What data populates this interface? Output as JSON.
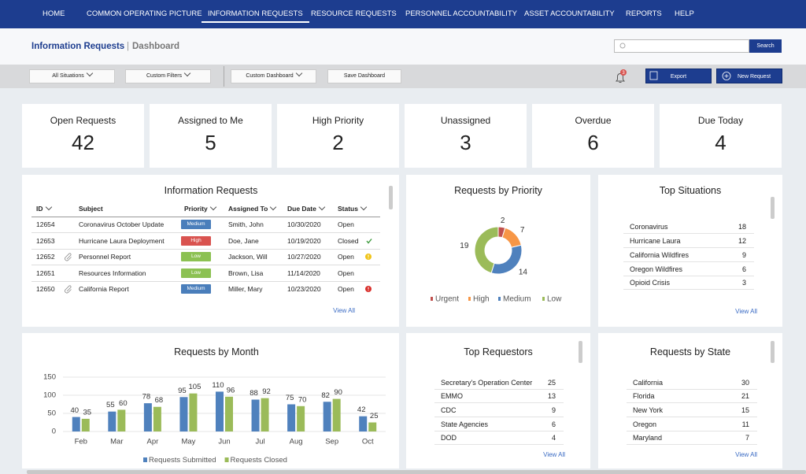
{
  "nav": {
    "items": [
      "HOME",
      "COMMON OPERATING PICTURE",
      "INFORMATION REQUESTS",
      "RESOURCE REQUESTS",
      "PERSONNEL ACCOUNTABILITY",
      "ASSET ACCOUNTABILITY",
      "REPORTS",
      "HELP"
    ],
    "active": 2
  },
  "header": {
    "title": "Information Requests",
    "separator": "|",
    "subtitle": "Dashboard",
    "search_button": "Search"
  },
  "toolbar": {
    "filters": [
      "All Situations",
      "Custom Filters"
    ],
    "custom_dashboard": "Custom Dashboard",
    "save_dashboard": "Save Dashboard",
    "notifications": 3,
    "export": "Export",
    "new_request": "New Request"
  },
  "kpis": [
    {
      "label": "Open Requests",
      "value": 42
    },
    {
      "label": "Assigned to Me",
      "value": 5
    },
    {
      "label": "High Priority",
      "value": 2
    },
    {
      "label": "Unassigned",
      "value": 3
    },
    {
      "label": "Overdue",
      "value": 6
    },
    {
      "label": "Due Today",
      "value": 4
    }
  ],
  "requests_table": {
    "title": "Information Requests",
    "columns": [
      "ID",
      "Subject",
      "Priority",
      "Assigned To",
      "Due Date",
      "Status"
    ],
    "badge_colors": {
      "Medium": "#4a7ebb",
      "High": "#d9534f",
      "Low": "#8cc152"
    },
    "rows": [
      {
        "id": "12654",
        "subject": "Coronavirus October Update",
        "priority": "Medium",
        "assigned_to": "Smith, John",
        "due_date": "10/30/2020",
        "status": "Open"
      },
      {
        "id": "12653",
        "subject": "Hurricane Laura Deployment",
        "priority": "High",
        "assigned_to": "Doe, Jane",
        "due_date": "10/19/2020",
        "status": "Closed",
        "status_icon": "check"
      },
      {
        "id": "12652",
        "subject": "Personnel Report",
        "priority": "Low",
        "assigned_to": "Jackson, Will",
        "due_date": "10/27/2020",
        "status": "Open",
        "attachment": true,
        "status_icon": "warning"
      },
      {
        "id": "12651",
        "subject": "Resources Information",
        "priority": "Low",
        "assigned_to": "Brown, Lisa",
        "due_date": "11/14/2020",
        "status": "Open"
      },
      {
        "id": "12650",
        "subject": "California Report",
        "priority": "Medium",
        "assigned_to": "Miller, Mary",
        "due_date": "10/23/2020",
        "status": "Open",
        "attachment": true,
        "status_icon": "error"
      }
    ],
    "view_all": "View All"
  },
  "top_situations": {
    "title": "Top Situations",
    "rows": [
      [
        "Coronavirus",
        "18"
      ],
      [
        "Hurricane Laura",
        "12"
      ],
      [
        "California Wildfires",
        "9"
      ],
      [
        "Oregon Wildfires",
        "6"
      ],
      [
        "Opioid Crisis",
        "3"
      ]
    ],
    "view_all": "View All"
  },
  "top_requestors": {
    "title": "Top Requestors",
    "rows": [
      [
        "Secretary's Operation Center",
        "25"
      ],
      [
        "EMMO",
        "13"
      ],
      [
        "CDC",
        "9"
      ],
      [
        "State Agencies",
        "6"
      ],
      [
        "DOD",
        "4"
      ]
    ],
    "view_all": "View All"
  },
  "requests_by_state": {
    "title": "Requests by State",
    "rows": [
      [
        "California",
        "30"
      ],
      [
        "Florida",
        "21"
      ],
      [
        "New York",
        "15"
      ],
      [
        "Oregon",
        "11"
      ],
      [
        "Maryland",
        "7"
      ]
    ],
    "view_all": "View All"
  },
  "chart_data": [
    {
      "type": "donut",
      "title": "Requests by Priority",
      "categories": [
        "Urgent",
        "High",
        "Medium",
        "Low"
      ],
      "values": [
        2,
        7,
        14,
        19
      ],
      "colors": [
        "#c0504d",
        "#f79646",
        "#4f81bd",
        "#9bbb59"
      ]
    },
    {
      "type": "bar",
      "title": "Requests by Month",
      "categories": [
        "Feb",
        "Mar",
        "Apr",
        "May",
        "Jun",
        "Jul",
        "Aug",
        "Sep",
        "Oct"
      ],
      "series": [
        {
          "name": "Requests Submitted",
          "color": "#4f81bd",
          "values": [
            40,
            55,
            78,
            95,
            110,
            88,
            75,
            82,
            42
          ]
        },
        {
          "name": "Requests Closed",
          "color": "#9bbb59",
          "values": [
            35,
            60,
            68,
            105,
            96,
            92,
            70,
            90,
            25
          ]
        }
      ],
      "ylim": [
        0,
        150
      ],
      "yticks": [
        0,
        50,
        100,
        150
      ],
      "grid": true
    }
  ]
}
